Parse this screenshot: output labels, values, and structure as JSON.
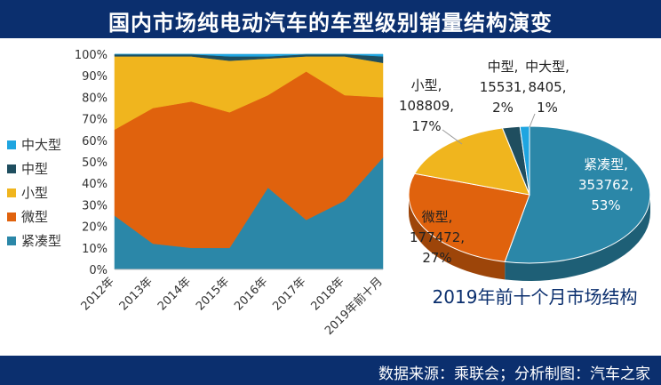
{
  "header": {
    "title": "国内市场纯电动汽车的车型级别销量结构演变"
  },
  "footer": {
    "source": "数据来源：乘联会；分析制图：汽车之家"
  },
  "colors": {
    "header_bg": "#0b2f6e",
    "zhongdaxing": "#1fa5e0",
    "zhongxing": "#1f4e5f",
    "xiaoxing": "#f0b51e",
    "weixing": "#e0620d",
    "jincouxing": "#2b87a8"
  },
  "chart_data": [
    {
      "type": "area",
      "stacked": true,
      "percent": true,
      "categories": [
        "2012年",
        "2013年",
        "2014年",
        "2015年",
        "2016年",
        "2017年",
        "2018年",
        "2019年前十月"
      ],
      "y_ticks": [
        "0%",
        "10%",
        "20%",
        "30%",
        "40%",
        "50%",
        "60%",
        "70%",
        "80%",
        "90%",
        "100%"
      ],
      "ylim": [
        0,
        100
      ],
      "legend_position": "left",
      "series": [
        {
          "name": "紧凑型",
          "values": [
            25,
            12,
            10,
            10,
            38,
            23,
            32,
            52
          ],
          "color": "#2b87a8"
        },
        {
          "name": "微型",
          "values": [
            40,
            63,
            68,
            63,
            43,
            69,
            49,
            28
          ],
          "color": "#e0620d"
        },
        {
          "name": "小型",
          "values": [
            34,
            24,
            21,
            24,
            17,
            7,
            18,
            16
          ],
          "color": "#f0b51e"
        },
        {
          "name": "中型",
          "values": [
            1,
            1,
            1,
            2,
            1,
            1,
            1,
            3
          ],
          "color": "#1f4e5f"
        },
        {
          "name": "中大型",
          "values": [
            0,
            0,
            0,
            1,
            1,
            0,
            0,
            1
          ],
          "color": "#1fa5e0"
        }
      ],
      "legend_order": [
        "中大型",
        "中型",
        "小型",
        "微型",
        "紧凑型"
      ]
    },
    {
      "type": "pie",
      "style": "3d",
      "title": "2019年前十个月市场结构",
      "slices": [
        {
          "name": "紧凑型",
          "value": 353762,
          "percent": "53%",
          "value_text": "353762,",
          "color": "#2b87a8"
        },
        {
          "name": "微型",
          "value": 177472,
          "percent": "27%",
          "value_text": "177472,",
          "color": "#e0620d"
        },
        {
          "name": "小型",
          "value": 108809,
          "percent": "17%",
          "value_text": "108809,",
          "color": "#f0b51e"
        },
        {
          "name": "中型",
          "value": 15531,
          "percent": "2%",
          "value_text": "15531,",
          "color": "#1f4e5f"
        },
        {
          "name": "中大型",
          "value": 8405,
          "percent": "1%",
          "value_text": "8405,",
          "color": "#1fa5e0"
        }
      ]
    }
  ]
}
